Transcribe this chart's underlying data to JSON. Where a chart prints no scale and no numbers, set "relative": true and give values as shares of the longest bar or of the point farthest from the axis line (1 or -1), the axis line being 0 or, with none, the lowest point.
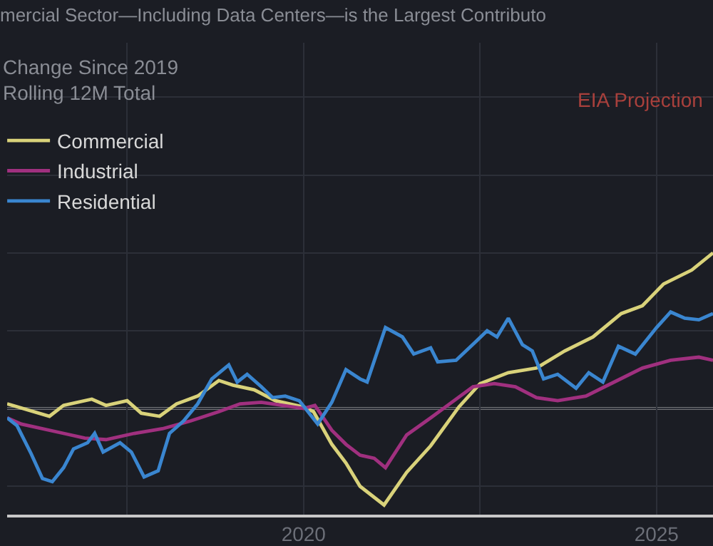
{
  "chart_data": {
    "type": "line",
    "title": "mercial Sector—Including Data Centers—is the Largest Contributo",
    "relative": true,
    "annotations": [
      "Change Since 2019\nRolling 12M Total",
      "EIA Projection"
    ],
    "xlim": [
      2015.8,
      2025.8
    ],
    "xticks": [
      {
        "value": 2017.5,
        "label": null
      },
      2020,
      {
        "value": 2022.5,
        "label": null
      },
      2025
    ],
    "grid": true,
    "legend": "top left",
    "marker": "none",
    "line_style": "solid",
    "ref_lines": [
      {
        "axis": "y",
        "value": 0,
        "color": "#c8c8c8"
      }
    ],
    "series": [
      {
        "name": "Commercial",
        "color": "#d9d27a",
        "x": [
          2015.8,
          2016.4,
          2016.6,
          2017.0,
          2017.2,
          2017.5,
          2017.7,
          2017.96,
          2018.2,
          2018.5,
          2018.8,
          2019.0,
          2019.3,
          2019.6,
          2020.0,
          2020.14,
          2020.4,
          2020.6,
          2020.8,
          2021.14,
          2021.46,
          2021.8,
          2022.2,
          2022.5,
          2022.9,
          2023.3,
          2023.7,
          2024.1,
          2024.5,
          2024.8,
          2025.1,
          2025.5,
          2025.8
        ],
        "values": [
          0.03,
          -0.05,
          0.02,
          0.06,
          0.02,
          0.05,
          -0.03,
          -0.05,
          0.03,
          0.08,
          0.18,
          0.15,
          0.12,
          0.05,
          0.01,
          -0.02,
          -0.23,
          -0.35,
          -0.5,
          -0.62,
          -0.41,
          -0.24,
          0.01,
          0.16,
          0.23,
          0.26,
          0.37,
          0.46,
          0.61,
          0.66,
          0.8,
          0.89,
          1.0
        ]
      },
      {
        "name": "Industrial",
        "color": "#a0307f",
        "x": [
          2015.8,
          2016.0,
          2016.6,
          2016.9,
          2017.2,
          2017.6,
          2018.0,
          2018.4,
          2018.8,
          2019.1,
          2019.4,
          2019.7,
          2020.0,
          2020.16,
          2020.4,
          2020.6,
          2020.8,
          2021.0,
          2021.16,
          2021.46,
          2021.8,
          2022.1,
          2022.4,
          2022.7,
          2023.0,
          2023.3,
          2023.6,
          2024.0,
          2024.4,
          2024.8,
          2025.2,
          2025.6,
          2025.8
        ],
        "values": [
          -0.06,
          -0.1,
          -0.16,
          -0.19,
          -0.2,
          -0.16,
          -0.13,
          -0.08,
          -0.02,
          0.03,
          0.04,
          0.02,
          0.0,
          0.02,
          -0.14,
          -0.23,
          -0.3,
          -0.32,
          -0.38,
          -0.17,
          -0.06,
          0.04,
          0.14,
          0.16,
          0.14,
          0.07,
          0.05,
          0.08,
          0.17,
          0.26,
          0.31,
          0.33,
          0.31
        ]
      },
      {
        "name": "Residential",
        "color": "#3a86d0",
        "x": [
          2015.8,
          2015.94,
          2016.14,
          2016.3,
          2016.44,
          2016.6,
          2016.74,
          2016.94,
          2017.04,
          2017.16,
          2017.4,
          2017.56,
          2017.74,
          2017.94,
          2018.1,
          2018.3,
          2018.5,
          2018.7,
          2018.94,
          2019.06,
          2019.2,
          2019.4,
          2019.56,
          2019.74,
          2019.94,
          2020.2,
          2020.4,
          2020.6,
          2020.8,
          2020.9,
          2021.16,
          2021.4,
          2021.56,
          2021.8,
          2021.9,
          2022.16,
          2022.44,
          2022.6,
          2022.74,
          2022.9,
          2023.1,
          2023.24,
          2023.4,
          2023.6,
          2023.86,
          2024.04,
          2024.24,
          2024.46,
          2024.7,
          2025.0,
          2025.2,
          2025.4,
          2025.6,
          2025.8
        ],
        "values": [
          -0.06,
          -0.11,
          -0.29,
          -0.45,
          -0.47,
          -0.38,
          -0.26,
          -0.22,
          -0.16,
          -0.28,
          -0.22,
          -0.28,
          -0.44,
          -0.4,
          -0.16,
          -0.08,
          0.03,
          0.19,
          0.28,
          0.17,
          0.22,
          0.14,
          0.07,
          0.08,
          0.05,
          -0.1,
          0.04,
          0.25,
          0.19,
          0.17,
          0.52,
          0.46,
          0.35,
          0.39,
          0.3,
          0.31,
          0.43,
          0.5,
          0.46,
          0.58,
          0.41,
          0.37,
          0.19,
          0.22,
          0.13,
          0.23,
          0.17,
          0.4,
          0.35,
          0.52,
          0.62,
          0.58,
          0.57,
          0.61
        ]
      }
    ]
  }
}
